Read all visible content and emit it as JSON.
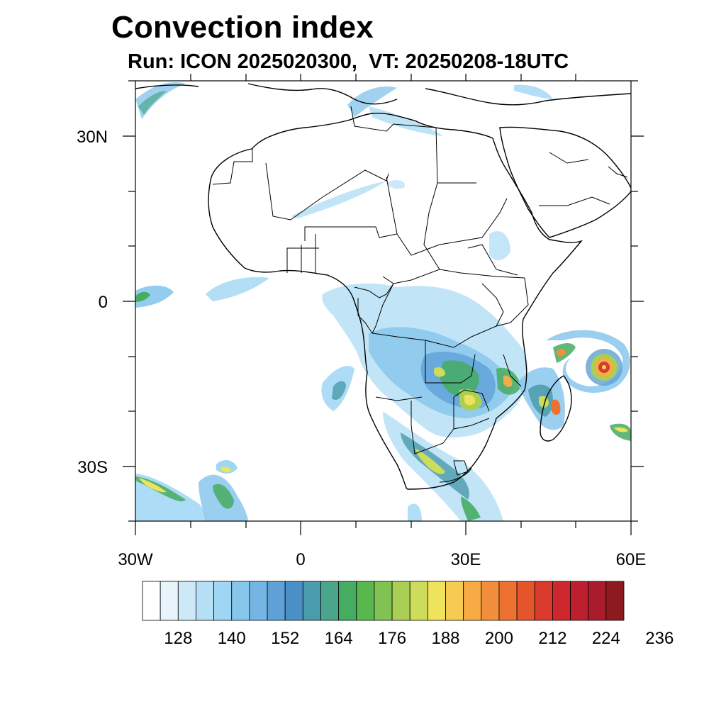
{
  "title": "Convection index",
  "subtitle": "Run: ICON 2025020300,  VT: 20250208-18UTC",
  "map": {
    "lon_range": [
      -30,
      60
    ],
    "lat_range": [
      -40,
      40
    ],
    "lat_labels": [
      "30N",
      "0",
      "30S"
    ],
    "lat_values": [
      30,
      0,
      -30
    ],
    "lon_labels": [
      "30W",
      "0",
      "30E",
      "60E"
    ],
    "lon_values": [
      -30,
      0,
      30,
      60
    ]
  },
  "colorbar": {
    "colors": [
      "#ffffff",
      "#e7f4fb",
      "#cde9f7",
      "#b6e0f6",
      "#9fd6f4",
      "#88c7ec",
      "#75b5e3",
      "#5fa0d6",
      "#4a8fc6",
      "#4a9bab",
      "#4aa68a",
      "#46ac62",
      "#58b84e",
      "#80c352",
      "#a9cf55",
      "#cedc5b",
      "#efe35b",
      "#f6cb52",
      "#f6ab45",
      "#f38f3c",
      "#ee7132",
      "#e5552c",
      "#d93a2b",
      "#cc282d",
      "#be1f2e",
      "#aa1b2c",
      "#8c1a1f"
    ],
    "labels": [
      "128",
      "140",
      "152",
      "164",
      "176",
      "188",
      "200",
      "212",
      "224",
      "236"
    ]
  },
  "icons": {
    "cyclone": "cyclone-marker"
  }
}
